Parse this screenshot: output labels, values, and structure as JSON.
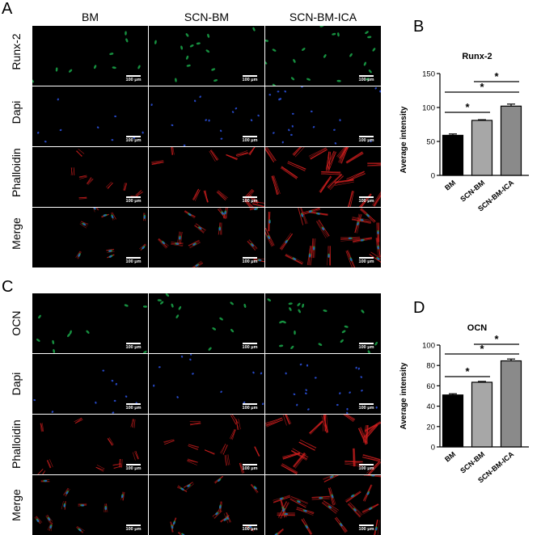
{
  "panel_letters": {
    "a": "A",
    "b": "B",
    "c": "C",
    "d": "D"
  },
  "columns": [
    "BM",
    "SCN-BM",
    "SCN-BM-ICA"
  ],
  "top_rows": [
    "Runx-2",
    "Dapi",
    "Phalloidin",
    "Merge"
  ],
  "bottom_rows": [
    "OCN",
    "Dapi",
    "Phalloidin",
    "Merge"
  ],
  "scale_bar": "100 μm",
  "colors": {
    "green": "#1aa84a",
    "blue": "#2a4fd8",
    "red": "#d82020",
    "bar_bm": "#000000",
    "bar_scn": "#a7a7a7",
    "bar_ica": "#8a8a8a"
  },
  "chart_data": [
    {
      "type": "bar",
      "title": "Runx-2",
      "ylabel": "Average intensity",
      "categories": [
        "BM",
        "SCN-BM",
        "SCN-BM-ICA"
      ],
      "values": [
        59,
        81,
        102
      ],
      "errors": [
        2,
        1,
        3
      ],
      "ylim": [
        0,
        150
      ],
      "yticks": [
        "0",
        "50",
        "100",
        "150"
      ],
      "significance": [
        "*",
        "*",
        "*"
      ]
    },
    {
      "type": "bar",
      "title": "OCN",
      "ylabel": "Average intensity",
      "categories": [
        "BM",
        "SCN-BM",
        "SCN-BM-ICA"
      ],
      "values": [
        51,
        63.5,
        84.5
      ],
      "errors": [
        1.2,
        0.8,
        1.8
      ],
      "ylim": [
        0,
        100
      ],
      "yticks": [
        "0",
        "20",
        "40",
        "60",
        "80",
        "100"
      ],
      "significance": [
        "*",
        "*",
        "*"
      ]
    }
  ]
}
